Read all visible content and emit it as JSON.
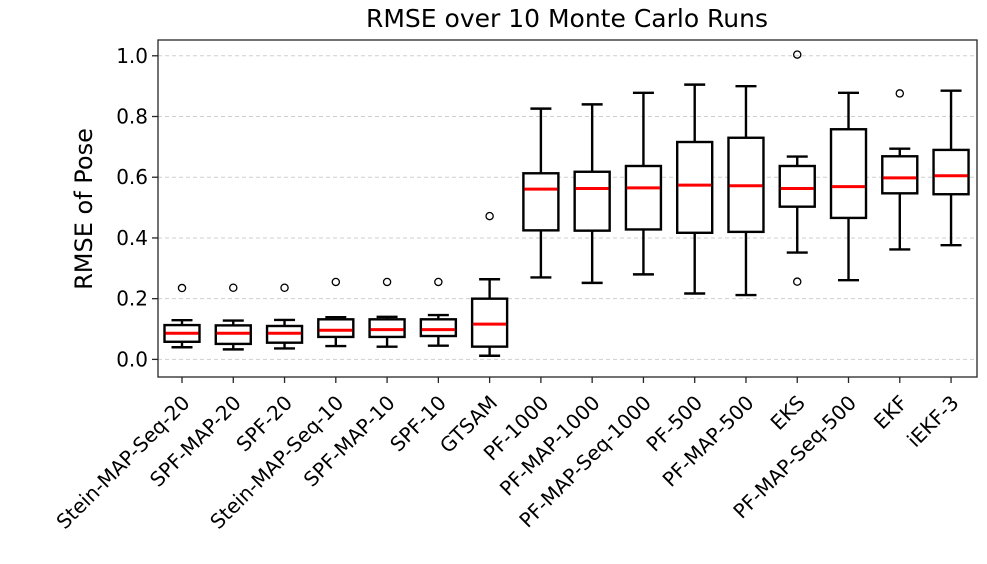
{
  "chart_data": {
    "type": "box",
    "title": "RMSE over 10 Monte Carlo Runs",
    "ylabel": "RMSE of Pose",
    "xlabel": "",
    "ylim": [
      -0.058,
      1.052
    ],
    "yticks": [
      0.0,
      0.2,
      0.4,
      0.6,
      0.8,
      1.0
    ],
    "ytick_labels": [
      "0.0",
      "0.2",
      "0.4",
      "0.6",
      "0.8",
      "1.0"
    ],
    "grid": "horizontal-dashed",
    "legend": "none",
    "x_label_rotation_deg": 45,
    "categories": [
      "Stein-MAP-Seq-20",
      "SPF-MAP-20",
      "SPF-20",
      "Stein-MAP-Seq-10",
      "SPF-MAP-10",
      "SPF-10",
      "GTSAM",
      "PF-1000",
      "PF-MAP-1000",
      "PF-MAP-Seq-1000",
      "PF-500",
      "PF-MAP-500",
      "EKS",
      "PF-MAP-Seq-500",
      "EKF",
      "iEKF-3"
    ],
    "boxes": [
      {
        "label": "Stein-MAP-Seq-20",
        "whisker_low": 0.04,
        "q1": 0.058,
        "median": 0.086,
        "q3": 0.113,
        "whisker_high": 0.129,
        "outliers": [
          0.235
        ]
      },
      {
        "label": "SPF-MAP-20",
        "whisker_low": 0.033,
        "q1": 0.051,
        "median": 0.086,
        "q3": 0.112,
        "whisker_high": 0.128,
        "outliers": [
          0.236
        ]
      },
      {
        "label": "SPF-20",
        "whisker_low": 0.036,
        "q1": 0.055,
        "median": 0.086,
        "q3": 0.11,
        "whisker_high": 0.13,
        "outliers": [
          0.236
        ]
      },
      {
        "label": "Stein-MAP-Seq-10",
        "whisker_low": 0.044,
        "q1": 0.074,
        "median": 0.096,
        "q3": 0.132,
        "whisker_high": 0.139,
        "outliers": [
          0.255
        ]
      },
      {
        "label": "SPF-MAP-10",
        "whisker_low": 0.042,
        "q1": 0.074,
        "median": 0.098,
        "q3": 0.132,
        "whisker_high": 0.14,
        "outliers": [
          0.255
        ]
      },
      {
        "label": "SPF-10",
        "whisker_low": 0.045,
        "q1": 0.077,
        "median": 0.098,
        "q3": 0.132,
        "whisker_high": 0.146,
        "outliers": [
          0.255
        ]
      },
      {
        "label": "GTSAM",
        "whisker_low": 0.012,
        "q1": 0.042,
        "median": 0.116,
        "q3": 0.2,
        "whisker_high": 0.264,
        "outliers": [
          0.472
        ]
      },
      {
        "label": "PF-1000",
        "whisker_low": 0.27,
        "q1": 0.425,
        "median": 0.561,
        "q3": 0.613,
        "whisker_high": 0.826,
        "outliers": []
      },
      {
        "label": "PF-MAP-1000",
        "whisker_low": 0.252,
        "q1": 0.424,
        "median": 0.563,
        "q3": 0.618,
        "whisker_high": 0.84,
        "outliers": []
      },
      {
        "label": "PF-MAP-Seq-1000",
        "whisker_low": 0.28,
        "q1": 0.428,
        "median": 0.565,
        "q3": 0.637,
        "whisker_high": 0.878,
        "outliers": []
      },
      {
        "label": "PF-500",
        "whisker_low": 0.217,
        "q1": 0.417,
        "median": 0.574,
        "q3": 0.716,
        "whisker_high": 0.905,
        "outliers": []
      },
      {
        "label": "PF-MAP-500",
        "whisker_low": 0.212,
        "q1": 0.42,
        "median": 0.572,
        "q3": 0.73,
        "whisker_high": 0.9,
        "outliers": []
      },
      {
        "label": "EKS",
        "whisker_low": 0.352,
        "q1": 0.503,
        "median": 0.563,
        "q3": 0.637,
        "whisker_high": 0.668,
        "outliers": [
          0.256,
          1.004
        ]
      },
      {
        "label": "PF-MAP-Seq-500",
        "whisker_low": 0.261,
        "q1": 0.466,
        "median": 0.569,
        "q3": 0.758,
        "whisker_high": 0.878,
        "outliers": []
      },
      {
        "label": "EKF",
        "whisker_low": 0.362,
        "q1": 0.547,
        "median": 0.598,
        "q3": 0.669,
        "whisker_high": 0.694,
        "outliers": [
          0.876
        ]
      },
      {
        "label": "iEKF-3",
        "whisker_low": 0.376,
        "q1": 0.544,
        "median": 0.605,
        "q3": 0.69,
        "whisker_high": 0.885,
        "outliers": []
      }
    ],
    "colors": {
      "box_edge": "#000000",
      "median": "#ff0000",
      "whisker": "#000000",
      "outlier_edge": "#000000",
      "grid": "#cfcfcf",
      "frame": "#262626",
      "background": "#ffffff"
    }
  }
}
